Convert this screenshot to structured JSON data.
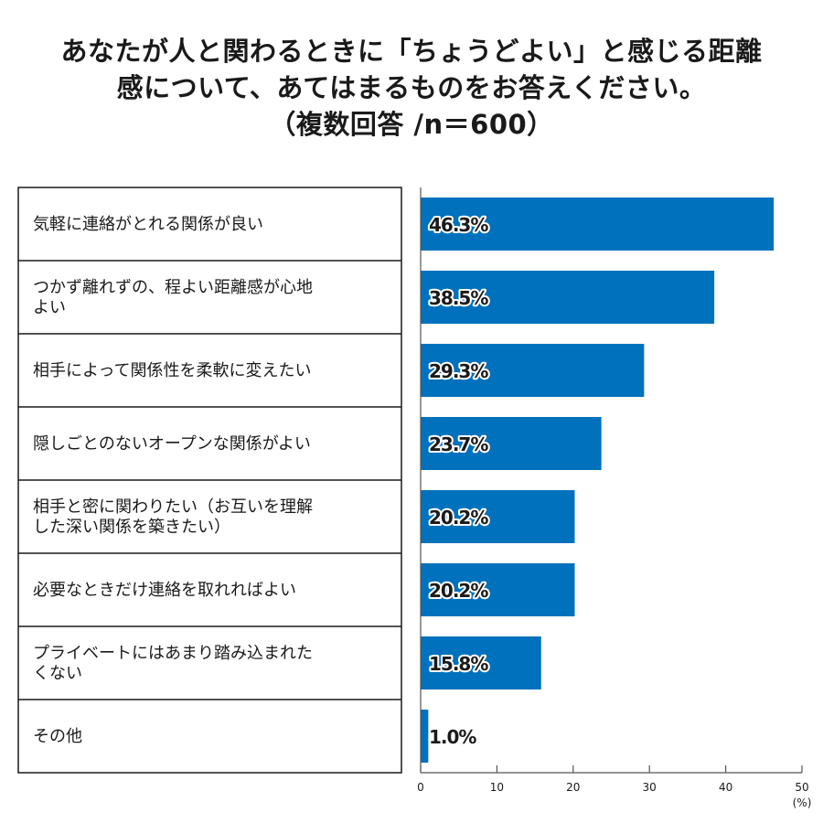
{
  "chart_data": {
    "type": "bar",
    "orientation": "horizontal",
    "title_lines": [
      "あなたが人と関わるときに「ちょうどよい」と感じる距離",
      "感について、あてはまるものをお答えください。",
      "（複数回答 /n＝600）"
    ],
    "categories": [
      [
        "気軽に連絡がとれる関係が良い"
      ],
      [
        "つかず離れずの、程よい距離感が心地",
        "よい"
      ],
      [
        "相手によって関係性を柔軟に変えたい"
      ],
      [
        "隠しごとのないオープンな関係がよい"
      ],
      [
        "相手と密に関わりたい（お互いを理解",
        "した深い関係を築きたい）"
      ],
      [
        "必要なときだけ連絡を取れればよい"
      ],
      [
        "プライベートにはあまり踏み込まれた",
        "くない"
      ],
      [
        "その他"
      ]
    ],
    "values": [
      46.3,
      38.5,
      29.3,
      23.7,
      20.2,
      20.2,
      15.8,
      1.0
    ],
    "value_labels": [
      "46.3%",
      "38.5%",
      "29.3%",
      "23.7%",
      "20.2%",
      "20.2%",
      "15.8%",
      "1.0%"
    ],
    "xlim": [
      0,
      50
    ],
    "ticks": [
      "0",
      "10",
      "20",
      "30",
      "40",
      "50"
    ],
    "unit_label": "(%)",
    "bar_color": "#0071bc",
    "grid": false,
    "legend": "none"
  }
}
